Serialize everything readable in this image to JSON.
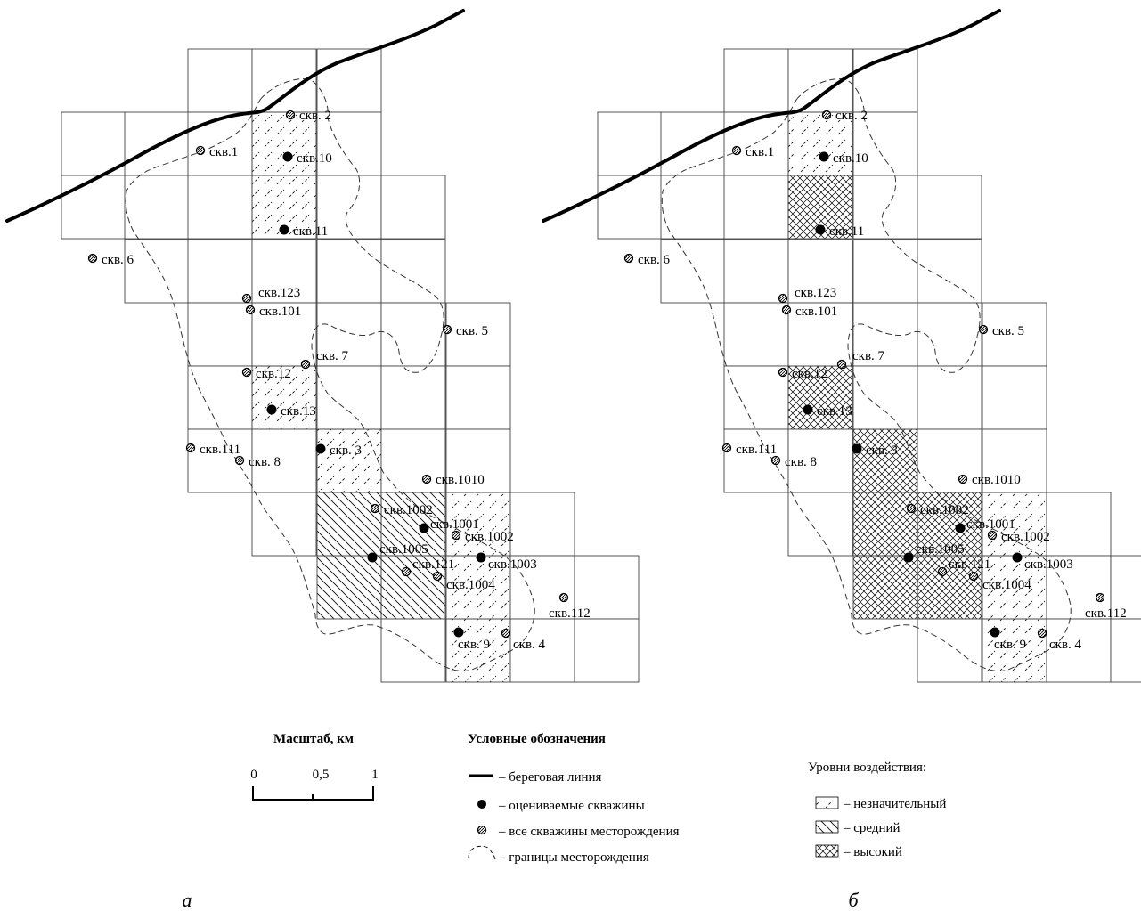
{
  "panels": [
    {
      "id": "a",
      "caption": "а",
      "cells": [
        {
          "c": 2,
          "r": 0
        },
        {
          "c": 3,
          "r": 0
        },
        {
          "c": 4,
          "r": 0
        },
        {
          "c": 0,
          "r": 1
        },
        {
          "c": 1,
          "r": 1
        },
        {
          "c": 2,
          "r": 1
        },
        {
          "c": 3,
          "r": 1,
          "level": "low"
        },
        {
          "c": 4,
          "r": 1
        },
        {
          "c": 0,
          "r": 2
        },
        {
          "c": 1,
          "r": 2
        },
        {
          "c": 2,
          "r": 2
        },
        {
          "c": 3,
          "r": 2,
          "level": "low"
        },
        {
          "c": 4,
          "r": 2
        },
        {
          "c": 5,
          "r": 2
        },
        {
          "c": 1,
          "r": 3
        },
        {
          "c": 2,
          "r": 3
        },
        {
          "c": 3,
          "r": 3
        },
        {
          "c": 4,
          "r": 3
        },
        {
          "c": 5,
          "r": 3
        },
        {
          "c": 2,
          "r": 4
        },
        {
          "c": 3,
          "r": 4
        },
        {
          "c": 4,
          "r": 4
        },
        {
          "c": 5,
          "r": 4
        },
        {
          "c": 6,
          "r": 4
        },
        {
          "c": 2,
          "r": 5
        },
        {
          "c": 3,
          "r": 5,
          "level": "low"
        },
        {
          "c": 4,
          "r": 5
        },
        {
          "c": 5,
          "r": 5
        },
        {
          "c": 6,
          "r": 5
        },
        {
          "c": 2,
          "r": 6
        },
        {
          "c": 3,
          "r": 6
        },
        {
          "c": 4,
          "r": 6,
          "level": "low"
        },
        {
          "c": 5,
          "r": 6
        },
        {
          "c": 6,
          "r": 6
        },
        {
          "c": 3,
          "r": 7
        },
        {
          "c": 4,
          "r": 7,
          "level": "medium"
        },
        {
          "c": 5,
          "r": 7,
          "level": "medium"
        },
        {
          "c": 6,
          "r": 7,
          "level": "low"
        },
        {
          "c": 7,
          "r": 7
        },
        {
          "c": 4,
          "r": 8,
          "level": "medium"
        },
        {
          "c": 5,
          "r": 8,
          "level": "medium"
        },
        {
          "c": 6,
          "r": 8,
          "level": "low"
        },
        {
          "c": 7,
          "r": 8
        },
        {
          "c": 8,
          "r": 8
        },
        {
          "c": 5,
          "r": 9
        },
        {
          "c": 6,
          "r": 9,
          "level": "low"
        },
        {
          "c": 7,
          "r": 9
        },
        {
          "c": 8,
          "r": 9
        }
      ]
    },
    {
      "id": "b",
      "caption": "б",
      "cells": [
        {
          "c": 2,
          "r": 0
        },
        {
          "c": 3,
          "r": 0
        },
        {
          "c": 4,
          "r": 0
        },
        {
          "c": 0,
          "r": 1
        },
        {
          "c": 1,
          "r": 1
        },
        {
          "c": 2,
          "r": 1
        },
        {
          "c": 3,
          "r": 1,
          "level": "low"
        },
        {
          "c": 4,
          "r": 1
        },
        {
          "c": 0,
          "r": 2
        },
        {
          "c": 1,
          "r": 2
        },
        {
          "c": 2,
          "r": 2
        },
        {
          "c": 3,
          "r": 2,
          "level": "high"
        },
        {
          "c": 4,
          "r": 2
        },
        {
          "c": 5,
          "r": 2
        },
        {
          "c": 1,
          "r": 3
        },
        {
          "c": 2,
          "r": 3
        },
        {
          "c": 3,
          "r": 3
        },
        {
          "c": 4,
          "r": 3
        },
        {
          "c": 5,
          "r": 3
        },
        {
          "c": 2,
          "r": 4
        },
        {
          "c": 3,
          "r": 4
        },
        {
          "c": 4,
          "r": 4
        },
        {
          "c": 5,
          "r": 4
        },
        {
          "c": 6,
          "r": 4
        },
        {
          "c": 2,
          "r": 5
        },
        {
          "c": 3,
          "r": 5,
          "level": "high"
        },
        {
          "c": 4,
          "r": 5
        },
        {
          "c": 5,
          "r": 5
        },
        {
          "c": 6,
          "r": 5
        },
        {
          "c": 2,
          "r": 6
        },
        {
          "c": 3,
          "r": 6
        },
        {
          "c": 4,
          "r": 6,
          "level": "high"
        },
        {
          "c": 5,
          "r": 6
        },
        {
          "c": 6,
          "r": 6
        },
        {
          "c": 3,
          "r": 7
        },
        {
          "c": 4,
          "r": 7,
          "level": "high"
        },
        {
          "c": 5,
          "r": 7,
          "level": "high"
        },
        {
          "c": 6,
          "r": 7,
          "level": "low"
        },
        {
          "c": 7,
          "r": 7
        },
        {
          "c": 4,
          "r": 8,
          "level": "high"
        },
        {
          "c": 5,
          "r": 8,
          "level": "high"
        },
        {
          "c": 6,
          "r": 8,
          "level": "low"
        },
        {
          "c": 7,
          "r": 8
        },
        {
          "c": 8,
          "r": 8
        },
        {
          "c": 5,
          "r": 9
        },
        {
          "c": 6,
          "r": 9,
          "level": "low"
        },
        {
          "c": 7,
          "r": 9
        },
        {
          "c": 8,
          "r": 9
        }
      ]
    }
  ],
  "wells": [
    {
      "label": "скв. 2",
      "type": "all"
    },
    {
      "label": "скв.1",
      "type": "all"
    },
    {
      "label": "скв.10",
      "type": "evaluated"
    },
    {
      "label": "скв.11",
      "type": "evaluated"
    },
    {
      "label": "скв. 6",
      "type": "all"
    },
    {
      "label": "скв.123",
      "type": "all"
    },
    {
      "label": "скв.101",
      "type": "all"
    },
    {
      "label": "скв. 5",
      "type": "all"
    },
    {
      "label": "скв. 7",
      "type": "all"
    },
    {
      "label": "скв.12",
      "type": "all"
    },
    {
      "label": "скв.13",
      "type": "evaluated"
    },
    {
      "label": "скв.111",
      "type": "all"
    },
    {
      "label": "скв. 8",
      "type": "all"
    },
    {
      "label": "скв. 3",
      "type": "evaluated"
    },
    {
      "label": "скв.1010",
      "type": "all"
    },
    {
      "label": "скв.1002",
      "type": "all"
    },
    {
      "label": "скв.1001",
      "type": "evaluated"
    },
    {
      "label": "скв.1002",
      "type": "all"
    },
    {
      "label": "скв.1005",
      "type": "evaluated"
    },
    {
      "label": "скв.121",
      "type": "all"
    },
    {
      "label": "скв.1003",
      "type": "evaluated"
    },
    {
      "label": "скв.1004",
      "type": "all"
    },
    {
      "label": "скв.112",
      "type": "all"
    },
    {
      "label": "скв. 9",
      "type": "evaluated"
    },
    {
      "label": "скв. 4",
      "type": "all"
    }
  ],
  "scale": {
    "title": "Масштаб, км",
    "ticks": [
      "0",
      "0,5",
      "1"
    ]
  },
  "legend": {
    "title": "Условные обозначения",
    "items": [
      {
        "symbol": "coastline",
        "text": "– береговая линия"
      },
      {
        "symbol": "evaluated-well",
        "text": "– оцениваемые скважины"
      },
      {
        "symbol": "all-wells",
        "text": "– все скважины месторождения"
      },
      {
        "symbol": "field-boundary",
        "text": "– границы месторождения"
      }
    ]
  },
  "impact": {
    "title": "Уровни воздействия:",
    "levels": [
      {
        "key": "low",
        "text": "– незначительный"
      },
      {
        "key": "medium",
        "text": "– средний"
      },
      {
        "key": "high",
        "text": "– высокий"
      }
    ]
  }
}
